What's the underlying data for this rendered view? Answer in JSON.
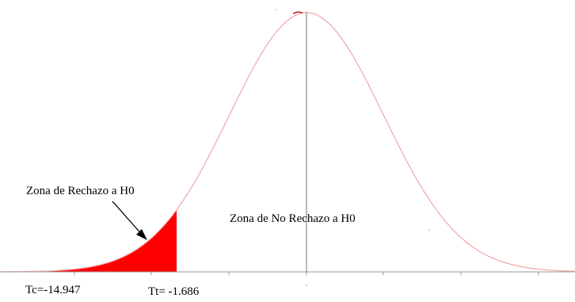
{
  "figure": {
    "rejection_zone_label": "Zona de Rechazo a H0",
    "non_rejection_zone_label": "Zona de No Rechazo a H0",
    "tc_label": "Tc=-14.947",
    "tt_label": "Tt= -1.686"
  },
  "colors": {
    "curve": "#f2a6a6",
    "rejection_fill": "#ff0000",
    "axis": "#888888",
    "center_line": "#777777"
  },
  "distribution": {
    "type": "normal",
    "critical_value_tt": -1.686,
    "calculated_value_tc": -14.947,
    "shaded_tail": "left"
  }
}
